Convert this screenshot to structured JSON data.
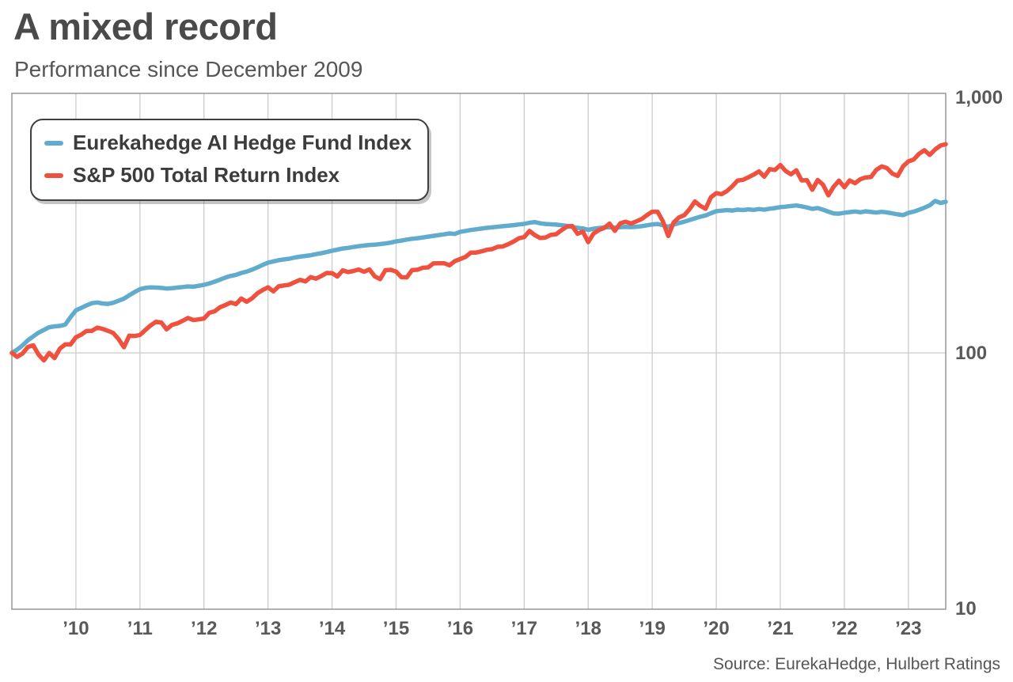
{
  "header": {
    "title": "A mixed record",
    "subtitle": "Performance since December 2009"
  },
  "source": "Source: EurekaHedge, Hulbert Ratings",
  "legend": {
    "items": [
      {
        "label": "Eurekahedge AI Hedge Fund Index",
        "color": "#61accd"
      },
      {
        "label": "S&P 500 Total Return Index",
        "color": "#f0513e"
      }
    ]
  },
  "colors": {
    "grid": "#cccccc",
    "plot_border": "#909090",
    "tick_text": "#595959",
    "blue_line": "#61accd",
    "red_line": "#f0513e"
  },
  "chart_data": {
    "type": "line",
    "title": "A mixed record",
    "subtitle": "Performance since December 2009",
    "x_axis": {
      "unit": "months since December 2009 (index start = 100)",
      "start": "Dec 2009",
      "ticks": [
        {
          "label": "’10",
          "month": 12
        },
        {
          "label": "’11",
          "month": 24
        },
        {
          "label": "’12",
          "month": 36
        },
        {
          "label": "’13",
          "month": 48
        },
        {
          "label": "’14",
          "month": 60
        },
        {
          "label": "’15",
          "month": 72
        },
        {
          "label": "’16",
          "month": 84
        },
        {
          "label": "’17",
          "month": 96
        },
        {
          "label": "’18",
          "month": 108
        },
        {
          "label": "’19",
          "month": 120
        },
        {
          "label": "’20",
          "month": 132
        },
        {
          "label": "’21",
          "month": 144
        },
        {
          "label": "’22",
          "month": 156
        },
        {
          "label": "’23",
          "month": 168
        }
      ]
    },
    "y_axis": {
      "scale": "log",
      "ticks": [
        {
          "label": "1,000",
          "value": 1000
        },
        {
          "label": "100",
          "value": 100
        },
        {
          "label": "10",
          "value": 10
        }
      ],
      "range": [
        9.6,
        1045
      ]
    },
    "legend_position": "top-left",
    "grid": "vertical-yearly",
    "series": [
      {
        "name": "Eurekahedge AI Hedge Fund Index",
        "color": "#61accd",
        "values": [
          100,
          103,
          107,
          112,
          116,
          120,
          123,
          126,
          127,
          127.5,
          129,
          138,
          146.6,
          150,
          153.5,
          156.5,
          157.5,
          156,
          155.5,
          157,
          160,
          163,
          168,
          173,
          177.5,
          179.5,
          180.5,
          180,
          179.5,
          178.5,
          179,
          180,
          181,
          182,
          181.5,
          183,
          184.6,
          187,
          190,
          193.5,
          197,
          200,
          202,
          205.5,
          208,
          211.5,
          216,
          221,
          225.4,
          228,
          230.5,
          232,
          233.5,
          236,
          238,
          239.5,
          241,
          243.5,
          245.5,
          248,
          251,
          253.5,
          256,
          257.5,
          259.5,
          261.5,
          263,
          264.5,
          265,
          266.5,
          268,
          270,
          273,
          275,
          277.5,
          279.5,
          281,
          283,
          285,
          287,
          289,
          291,
          293.5,
          292,
          297.4,
          300,
          302.5,
          304.5,
          306.5,
          308.5,
          310,
          311.5,
          313,
          314.5,
          316,
          318,
          319.7,
          323,
          325,
          321.5,
          319.5,
          318.5,
          317.5,
          316,
          314,
          311,
          308.5,
          307,
          303,
          306,
          308,
          310,
          310.5,
          309,
          310.5,
          311,
          310.5,
          311.5,
          313,
          315.5,
          318,
          319.5,
          316,
          311,
          317.5,
          322,
          326,
          331,
          336,
          341,
          345,
          352,
          358.6,
          360,
          362,
          360.5,
          363.5,
          362,
          364.5,
          362.5,
          365.5,
          363.5,
          366.5,
          368.5,
          371.7,
          373.5,
          375.5,
          377.5,
          374.5,
          370.5,
          366,
          368.5,
          363.5,
          357,
          351.5,
          350.5,
          353.5,
          355.5,
          357.5,
          355,
          358,
          356,
          354,
          356.5,
          354.5,
          351.5,
          348.5,
          346,
          353,
          357,
          363,
          370,
          378,
          393,
          386,
          390
        ]
      },
      {
        "name": "S&P 500 Total Return Index",
        "color": "#f0513e",
        "values": [
          100,
          96.4,
          99.4,
          105.4,
          107.1,
          98.5,
          93.4,
          99.9,
          95.4,
          103.9,
          107.9,
          107.9,
          115.1,
          117.9,
          121.9,
          121.9,
          125.5,
          124.1,
          122,
          119.6,
          113.1,
          105.2,
          116.7,
          116.4,
          117.5,
          122.8,
          128.1,
          132.3,
          131.5,
          123.6,
          128.7,
          130.5,
          133.5,
          136.9,
          134.4,
          135.2,
          136.3,
          143.4,
          145.4,
          150.9,
          153.8,
          157.4,
          155.3,
          163.2,
          158.5,
          163.4,
          171,
          176.1,
          180.4,
          174.1,
          182.1,
          183.6,
          184.9,
          189.2,
          193.1,
          190.4,
          198,
          195.2,
          200,
          205.4,
          205.1,
          199,
          210.4,
          207.1,
          209.1,
          211.8,
          207.7,
          212.1,
          199.3,
          194.4,
          210.7,
          211.4,
          208,
          197.7,
          197.4,
          210.8,
          211.6,
          215.4,
          216,
          224,
          224.3,
          224.3,
          220.2,
          228.4,
          232.9,
          237.3,
          246.8,
          247,
          249.6,
          253.1,
          254.7,
          260,
          260.8,
          266.2,
          272.4,
          280.8,
          283.7,
          300,
          288.9,
          281.6,
          282.7,
          289.5,
          291.3,
          302.1,
          312,
          313.8,
          292.4,
          298.3,
          271.2,
          293,
          302.4,
          308.2,
          320.6,
          300.2,
          321.3,
          325.9,
          320.7,
          326.7,
          333.9,
          346,
          356.7,
          356.6,
          327.2,
          286.7,
          323.4,
          338.9,
          345.6,
          365,
          391.3,
          376.4,
          366.3,
          406.3,
          421.8,
          418,
          429.6,
          448.5,
          472.3,
          475.6,
          486.5,
          498.2,
          513.2,
          489.2,
          523.5,
          519.8,
          543.2,
          515,
          499.6,
          518.1,
          473,
          473.9,
          434.7,
          474.7,
          455.3,
          413.4,
          446.9,
          471.9,
          444.6,
          472.6,
          461.2,
          478.2,
          485.9,
          487.9,
          520.1,
          536.8,
          528.2,
          502.9,
          492.4,
          537.2,
          561.4,
          570.9,
          601.2,
          620.5,
          595.1,
          624.8,
          647.3,
          655.1
        ]
      }
    ]
  }
}
